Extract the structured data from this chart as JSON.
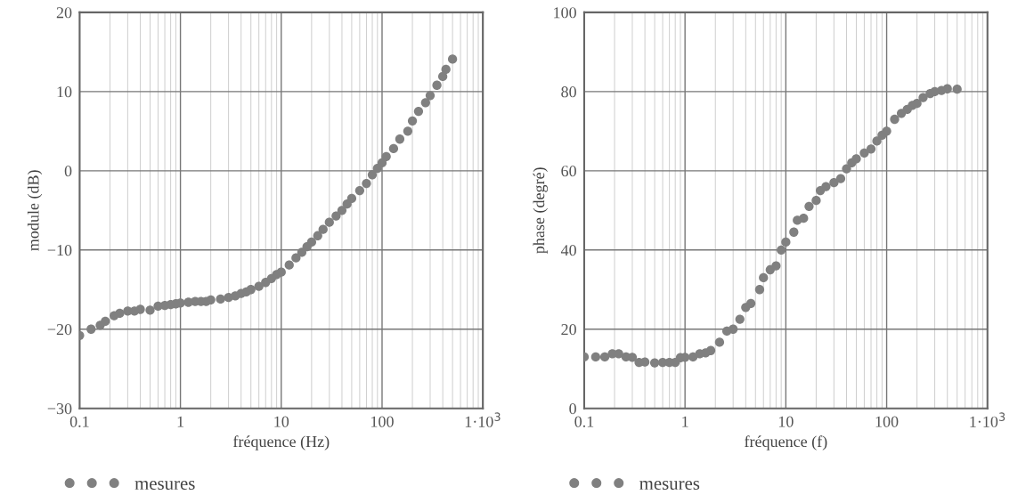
{
  "chart_data": [
    {
      "type": "scatter",
      "xlabel": "fréquence (Hz)",
      "ylabel": "module (dB)",
      "log": "x",
      "grid": true,
      "legend": "bottom left",
      "marker": "circle",
      "xlim": [
        0.1,
        1000
      ],
      "xticks": [
        0.1,
        1,
        10,
        100,
        {
          "value": 1000,
          "label": "1·10$^{3}$"
        }
      ],
      "ylim": [
        -30,
        20
      ],
      "yticks": [
        {
          "value": -30,
          "label": "−30"
        },
        {
          "value": -20,
          "label": "−20"
        },
        {
          "value": -10,
          "label": "−10"
        },
        0,
        10,
        20
      ],
      "series": [
        {
          "name": "mesures",
          "color": "#808080",
          "x": [
            0.1,
            0.13,
            0.16,
            0.18,
            0.22,
            0.25,
            0.3,
            0.35,
            0.4,
            0.5,
            0.6,
            0.7,
            0.8,
            0.9,
            1.0,
            1.2,
            1.4,
            1.6,
            1.8,
            2,
            2.5,
            3,
            3.5,
            4,
            4.5,
            5,
            6,
            7,
            8,
            9,
            10,
            12,
            14,
            16,
            18,
            20,
            23,
            26,
            30,
            35,
            40,
            45,
            50,
            60,
            70,
            80,
            90,
            100,
            110,
            130,
            150,
            180,
            200,
            230,
            270,
            300,
            350,
            400,
            430,
            500
          ],
          "values": [
            -20.8,
            -20.0,
            -19.5,
            -19.0,
            -18.3,
            -18.0,
            -17.7,
            -17.7,
            -17.5,
            -17.6,
            -17.1,
            -17.0,
            -16.9,
            -16.8,
            -16.7,
            -16.6,
            -16.5,
            -16.5,
            -16.5,
            -16.3,
            -16.2,
            -16.0,
            -15.8,
            -15.5,
            -15.3,
            -15.0,
            -14.6,
            -14.1,
            -13.6,
            -13.1,
            -12.8,
            -11.9,
            -11.0,
            -10.3,
            -9.6,
            -9.0,
            -8.2,
            -7.4,
            -6.5,
            -5.7,
            -5.0,
            -4.2,
            -3.5,
            -2.5,
            -1.6,
            -0.5,
            0.3,
            1.0,
            1.8,
            2.8,
            4.0,
            5.0,
            6.3,
            7.5,
            8.6,
            9.5,
            10.8,
            11.9,
            12.8,
            14.1
          ]
        }
      ]
    },
    {
      "type": "scatter",
      "xlabel": "fréquence (f)",
      "ylabel": "phase (degré)",
      "log": "x",
      "grid": true,
      "legend": "bottom left",
      "marker": "circle",
      "xlim": [
        0.1,
        1000
      ],
      "xticks": [
        0.1,
        1,
        10,
        100,
        {
          "value": 1000,
          "label": "1·10$^{3}$"
        }
      ],
      "ylim": [
        0,
        100
      ],
      "yticks": [
        0,
        20,
        40,
        60,
        80,
        100
      ],
      "series": [
        {
          "name": "mesures",
          "color": "#808080",
          "x": [
            0.1,
            0.13,
            0.16,
            0.19,
            0.22,
            0.26,
            0.3,
            0.35,
            0.4,
            0.5,
            0.6,
            0.7,
            0.8,
            0.9,
            1.0,
            1.2,
            1.4,
            1.6,
            1.8,
            2.2,
            2.6,
            3,
            3.5,
            4,
            4.5,
            5.5,
            6,
            7,
            8,
            9,
            10,
            12,
            13,
            15,
            17,
            20,
            22,
            25,
            30,
            35,
            40,
            45,
            50,
            60,
            70,
            80,
            90,
            100,
            120,
            140,
            160,
            180,
            200,
            230,
            270,
            300,
            350,
            400,
            500
          ],
          "values": [
            13,
            13,
            13,
            13.8,
            13.8,
            13,
            12.9,
            11.6,
            11.7,
            11.5,
            11.6,
            11.6,
            11.6,
            12.8,
            12.9,
            13,
            13.8,
            14,
            14.6,
            16.7,
            19.5,
            20,
            22.5,
            25.5,
            26.5,
            30,
            33,
            35,
            36,
            40,
            42,
            44.5,
            47.5,
            48,
            51,
            52.5,
            55,
            56,
            57,
            58,
            60.5,
            62,
            63,
            64.5,
            65.5,
            67.5,
            69,
            70,
            73,
            74.5,
            75.5,
            76.5,
            77,
            78.5,
            79.5,
            80,
            80.3,
            80.7,
            80.6
          ]
        }
      ]
    }
  ]
}
